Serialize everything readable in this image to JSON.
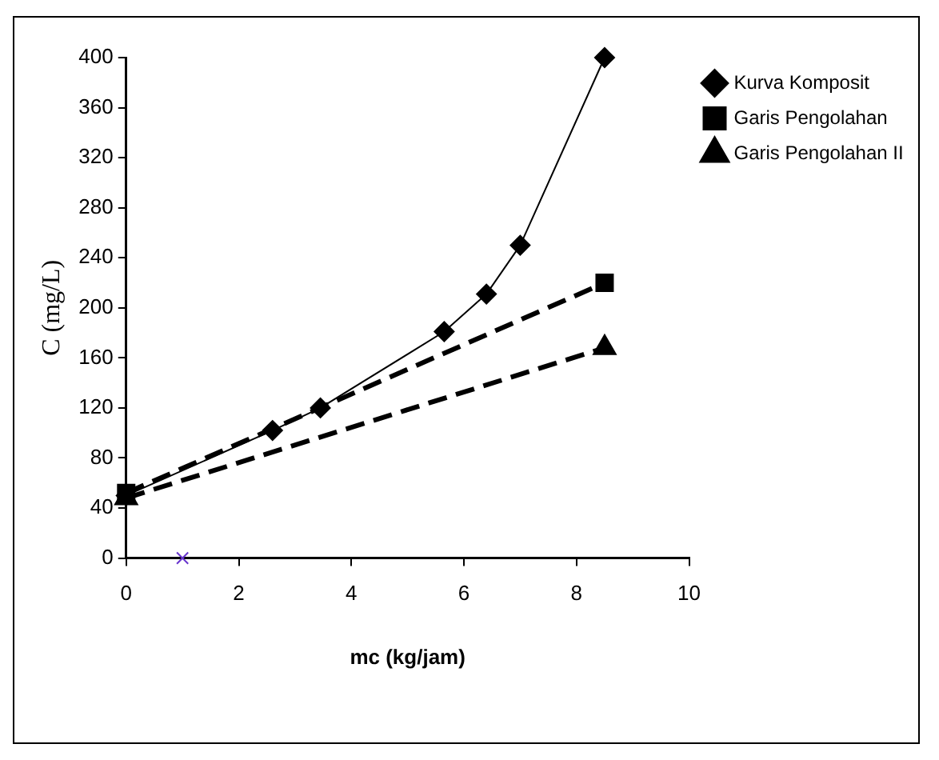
{
  "chart_data": {
    "type": "line",
    "xlabel": "mc (kg/jam)",
    "ylabel": "C (mg/L)",
    "xlim": [
      0,
      10
    ],
    "xticks": [
      0,
      2,
      4,
      6,
      8,
      10
    ],
    "ylim": [
      0,
      400
    ],
    "yticks": [
      0,
      40,
      80,
      120,
      160,
      200,
      240,
      280,
      320,
      360,
      400
    ],
    "grid": false,
    "legend": "top right",
    "series": [
      {
        "name": "Kurva Komposit",
        "color": "#000000",
        "marker": "diamond",
        "line_style": "solid",
        "x": [
          0,
          2.6,
          3.45,
          5.65,
          6.4,
          7.0,
          8.5
        ],
        "values": [
          50,
          102,
          120,
          181,
          211,
          250,
          400
        ]
      },
      {
        "name": "Garis Pengolahan",
        "color": "#000000",
        "marker": "square",
        "line_style": "dashed",
        "x": [
          0,
          8.5
        ],
        "values": [
          52,
          220
        ]
      },
      {
        "name": "Garis Pengolahan II",
        "color": "#000000",
        "marker": "triangle",
        "line_style": "dashed",
        "x": [
          0,
          8.5
        ],
        "values": [
          48,
          168
        ]
      },
      {
        "type": "scatter",
        "color": "#6633cc",
        "marker": "cross",
        "x": [
          1
        ],
        "values": [
          0
        ]
      }
    ]
  }
}
